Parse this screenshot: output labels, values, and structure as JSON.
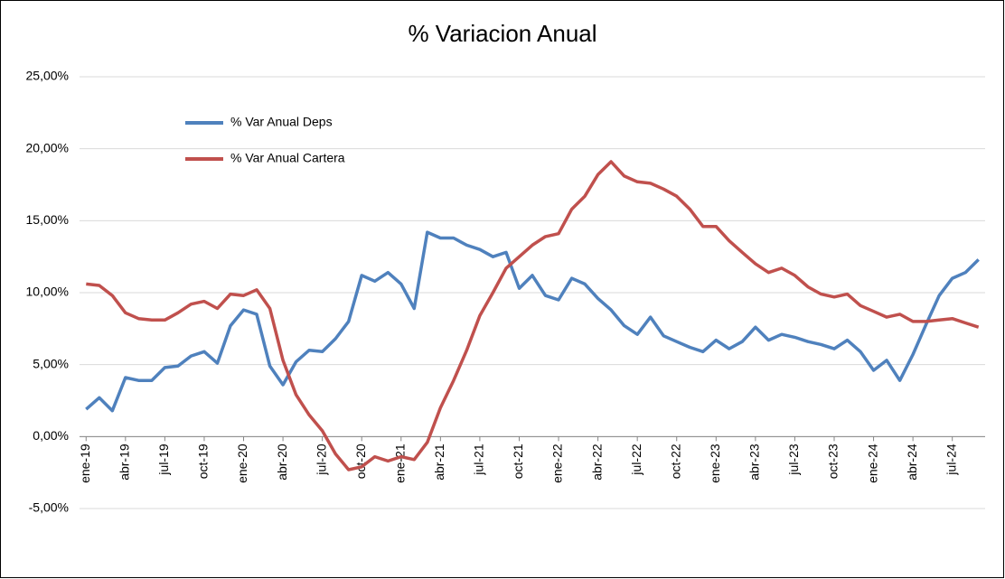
{
  "chart_data": {
    "type": "line",
    "title": "% Variacion Anual",
    "categories": [
      "ene-19",
      null,
      null,
      "abr-19",
      null,
      null,
      "jul-19",
      null,
      null,
      "oct-19",
      null,
      null,
      "ene-20",
      null,
      null,
      "abr-20",
      null,
      null,
      "jul-20",
      null,
      null,
      "oct-20",
      null,
      null,
      "ene-21",
      null,
      null,
      "abr-21",
      null,
      null,
      "jul-21",
      null,
      null,
      "oct-21",
      null,
      null,
      "ene-22",
      null,
      null,
      "abr-22",
      null,
      null,
      "jul-22",
      null,
      null,
      "oct-22",
      null,
      null,
      "ene-23",
      null,
      null,
      "abr-23",
      null,
      null,
      "jul-23",
      null,
      null,
      "oct-23",
      null,
      null,
      "ene-24",
      null,
      null,
      "abr-24",
      null,
      null,
      "jul-24",
      null,
      null
    ],
    "series": [
      {
        "name": "% Var Anual Deps",
        "color": "#4f81bd",
        "values": [
          1.9,
          2.7,
          1.8,
          4.1,
          3.9,
          3.9,
          4.8,
          4.9,
          5.6,
          5.9,
          5.1,
          7.7,
          8.8,
          8.5,
          4.9,
          3.6,
          5.2,
          6.0,
          5.9,
          6.8,
          8.0,
          11.2,
          10.8,
          11.4,
          10.6,
          8.9,
          14.2,
          13.8,
          13.8,
          13.3,
          13.0,
          12.5,
          12.8,
          10.3,
          11.2,
          9.8,
          9.5,
          11.0,
          10.6,
          9.6,
          8.8,
          7.7,
          7.1,
          8.3,
          7.0,
          6.6,
          6.2,
          5.9,
          6.7,
          6.1,
          6.6,
          7.6,
          6.7,
          7.1,
          6.9,
          6.6,
          6.4,
          6.1,
          6.7,
          5.9,
          4.6,
          5.3,
          3.9,
          5.7,
          7.8,
          9.8,
          11.0,
          11.4,
          12.3
        ]
      },
      {
        "name": "% Var Anual Cartera",
        "color": "#c0504d",
        "values": [
          10.6,
          10.5,
          9.8,
          8.6,
          8.2,
          8.1,
          8.1,
          8.6,
          9.2,
          9.4,
          8.9,
          9.9,
          9.8,
          10.2,
          8.9,
          5.3,
          2.9,
          1.5,
          0.4,
          -1.2,
          -2.3,
          -2.1,
          -1.4,
          -1.7,
          -1.4,
          -1.6,
          -0.4,
          2.0,
          3.9,
          6.0,
          8.4,
          10.0,
          11.7,
          12.5,
          13.3,
          13.9,
          14.1,
          15.8,
          16.7,
          18.2,
          19.1,
          18.1,
          17.7,
          17.6,
          17.2,
          16.7,
          15.8,
          14.6,
          14.6,
          13.6,
          12.8,
          12.0,
          11.4,
          11.7,
          11.2,
          10.4,
          9.9,
          9.7,
          9.9,
          9.1,
          8.7,
          8.3,
          8.5,
          8.0,
          8.0,
          8.1,
          8.2,
          7.9,
          7.6
        ]
      }
    ],
    "ylim": [
      -5,
      25
    ],
    "yticks": [
      {
        "value": -5,
        "label": "-5,00%"
      },
      {
        "value": 0,
        "label": "0,00%"
      },
      {
        "value": 5,
        "label": "5,00%"
      },
      {
        "value": 10,
        "label": "10,00%"
      },
      {
        "value": 15,
        "label": "15,00%"
      },
      {
        "value": 20,
        "label": "20,00%"
      },
      {
        "value": 25,
        "label": "25,00%"
      }
    ],
    "grid": true,
    "legend": "upper left"
  }
}
